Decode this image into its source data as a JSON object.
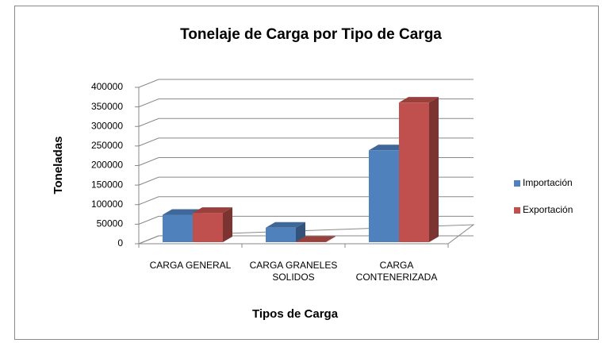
{
  "chart_data": {
    "type": "bar3d",
    "title": "Tonelaje de Carga por Tipo de Carga",
    "x_label": "Tipos de Carga",
    "y_label": "Toneladas",
    "categories": [
      "CARGA GENERAL",
      "CARGA GRANELES SOLIDOS",
      "CARGA CONTENERIZADA"
    ],
    "series": [
      {
        "name": "Importación",
        "color": "#4f81bd",
        "values": [
          70000,
          37000,
          235000
        ]
      },
      {
        "name": "Exportación",
        "color": "#c0504d",
        "values": [
          75000,
          1000,
          357000
        ]
      }
    ],
    "ylim": [
      0,
      400000
    ],
    "yticks": [
      0,
      50000,
      100000,
      150000,
      200000,
      250000,
      300000,
      350000,
      400000
    ],
    "grid": true,
    "legend": "right"
  }
}
